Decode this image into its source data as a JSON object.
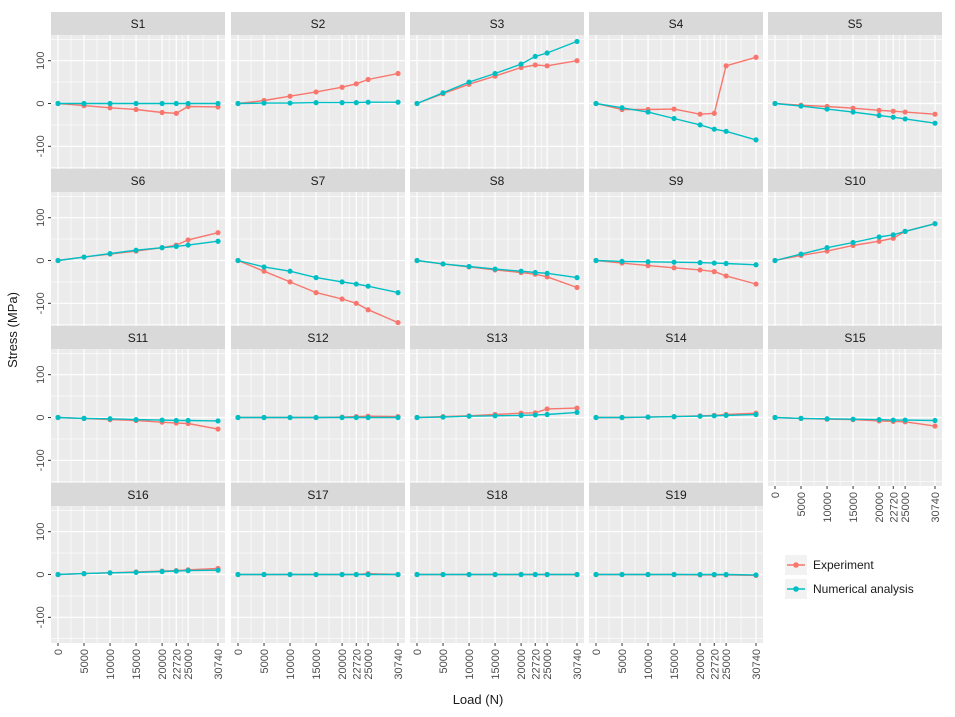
{
  "chart_data": {
    "type": "line",
    "xlabel": "Load (N)",
    "ylabel": "Stress (MPa)",
    "x": [
      0,
      5000,
      10000,
      15000,
      20000,
      22720,
      25000,
      30740
    ],
    "x_ticks": [
      0,
      5000,
      10000,
      15000,
      20000,
      22720,
      25000,
      30740
    ],
    "y_ticks": [
      -100,
      0,
      100
    ],
    "ylim": [
      -160,
      160
    ],
    "legend": {
      "position": "right",
      "entries": [
        {
          "name": "Experiment",
          "color": "#F8766D"
        },
        {
          "name": "Numerical analysis",
          "color": "#00BFC4"
        }
      ]
    },
    "series_names": [
      "Experiment",
      "Numerical analysis"
    ],
    "panels": [
      {
        "label": "S1",
        "experiment": [
          0,
          -5,
          -10,
          -14,
          -21,
          -23,
          -7,
          -8
        ],
        "numerical": [
          0,
          0,
          0,
          0,
          0,
          0,
          0,
          0
        ]
      },
      {
        "label": "S2",
        "experiment": [
          0,
          7,
          17,
          27,
          38,
          46,
          56,
          70
        ],
        "numerical": [
          0,
          1,
          1,
          2,
          2,
          2,
          3,
          3
        ]
      },
      {
        "label": "S3",
        "experiment": [
          0,
          23,
          45,
          64,
          84,
          90,
          88,
          100
        ],
        "numerical": [
          0,
          25,
          50,
          70,
          92,
          110,
          118,
          145
        ]
      },
      {
        "label": "S4",
        "experiment": [
          0,
          -14,
          -14,
          -13,
          -25,
          -23,
          88,
          108
        ],
        "numerical": [
          0,
          -10,
          -20,
          -35,
          -50,
          -60,
          -65,
          -85
        ]
      },
      {
        "label": "S5",
        "experiment": [
          0,
          -4,
          -7,
          -11,
          -16,
          -18,
          -20,
          -25
        ],
        "numerical": [
          0,
          -6,
          -13,
          -20,
          -28,
          -32,
          -36,
          -46
        ]
      },
      {
        "label": "S6",
        "experiment": [
          0,
          8,
          15,
          22,
          30,
          36,
          48,
          65
        ],
        "numerical": [
          0,
          8,
          16,
          24,
          30,
          33,
          36,
          45
        ]
      },
      {
        "label": "S7",
        "experiment": [
          0,
          -25,
          -50,
          -75,
          -90,
          -100,
          -115,
          -145
        ],
        "numerical": [
          0,
          -15,
          -25,
          -40,
          -50,
          -55,
          -60,
          -75
        ]
      },
      {
        "label": "S8",
        "experiment": [
          0,
          -8,
          -15,
          -22,
          -28,
          -32,
          -38,
          -63
        ],
        "numerical": [
          0,
          -8,
          -14,
          -20,
          -25,
          -28,
          -30,
          -40
        ]
      },
      {
        "label": "S9",
        "experiment": [
          0,
          -6,
          -12,
          -17,
          -22,
          -26,
          -36,
          -55
        ],
        "numerical": [
          0,
          -2,
          -3,
          -4,
          -5,
          -6,
          -7,
          -10
        ]
      },
      {
        "label": "S10",
        "experiment": [
          0,
          12,
          22,
          35,
          45,
          52,
          68,
          86
        ],
        "numerical": [
          0,
          15,
          30,
          42,
          55,
          60,
          68,
          86
        ]
      },
      {
        "label": "S11",
        "experiment": [
          0,
          -2,
          -5,
          -7,
          -11,
          -13,
          -14,
          -27
        ],
        "numerical": [
          0,
          -2,
          -3,
          -5,
          -6,
          -7,
          -7,
          -8
        ]
      },
      {
        "label": "S12",
        "experiment": [
          0,
          0,
          0,
          0,
          1,
          2,
          3,
          2
        ],
        "numerical": [
          0,
          0,
          0,
          0,
          0,
          0,
          0,
          0
        ]
      },
      {
        "label": "S13",
        "experiment": [
          0,
          2,
          4,
          7,
          10,
          11,
          20,
          22
        ],
        "numerical": [
          0,
          1,
          3,
          4,
          5,
          6,
          7,
          12
        ]
      },
      {
        "label": "S14",
        "experiment": [
          0,
          0,
          1,
          2,
          4,
          5,
          7,
          10
        ],
        "numerical": [
          0,
          0,
          1,
          2,
          3,
          4,
          5,
          7
        ]
      },
      {
        "label": "S15",
        "experiment": [
          0,
          -2,
          -4,
          -5,
          -8,
          -9,
          -10,
          -20
        ],
        "numerical": [
          0,
          -2,
          -3,
          -4,
          -5,
          -6,
          -6,
          -7
        ]
      },
      {
        "label": "S16",
        "experiment": [
          0,
          2,
          4,
          6,
          8,
          9,
          11,
          14
        ],
        "numerical": [
          0,
          2,
          4,
          5,
          7,
          8,
          9,
          10
        ]
      },
      {
        "label": "S17",
        "experiment": [
          0,
          0,
          0,
          0,
          0,
          0,
          2,
          0
        ],
        "numerical": [
          0,
          0,
          0,
          0,
          0,
          0,
          0,
          0
        ]
      },
      {
        "label": "S18",
        "experiment": [
          0,
          0,
          0,
          0,
          0,
          0,
          0,
          0
        ],
        "numerical": [
          0,
          0,
          0,
          0,
          0,
          0,
          0,
          0
        ]
      },
      {
        "label": "S19",
        "experiment": [
          0,
          0,
          0,
          0,
          -1,
          -1,
          -1,
          -2
        ],
        "numerical": [
          0,
          0,
          0,
          0,
          0,
          0,
          0,
          -1
        ]
      }
    ],
    "grid": true,
    "colors": {
      "experiment": "#F8766D",
      "numerical": "#00BFC4",
      "panel_bg": "#EBEBEB",
      "strip_bg": "#D9D9D9",
      "grid": "#FFFFFF"
    }
  }
}
